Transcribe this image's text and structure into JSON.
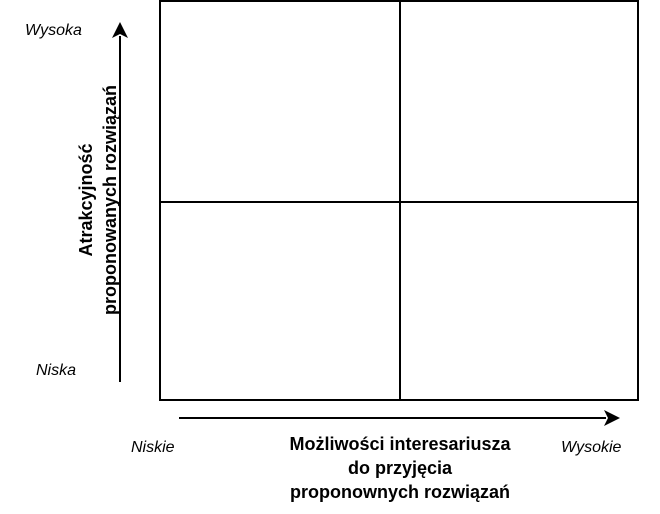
{
  "y_axis": {
    "high_label": "Wysoka",
    "low_label": "Niska",
    "title_line1": "Atrakcyjność",
    "title_line2": "proponowanych rozwiązań"
  },
  "x_axis": {
    "low_label": "Niskie",
    "high_label": "Wysokie",
    "title_line1": "Możliwości interesariusza",
    "title_line2": "do przyjęcia",
    "title_line3": "proponownych rozwiązań"
  }
}
